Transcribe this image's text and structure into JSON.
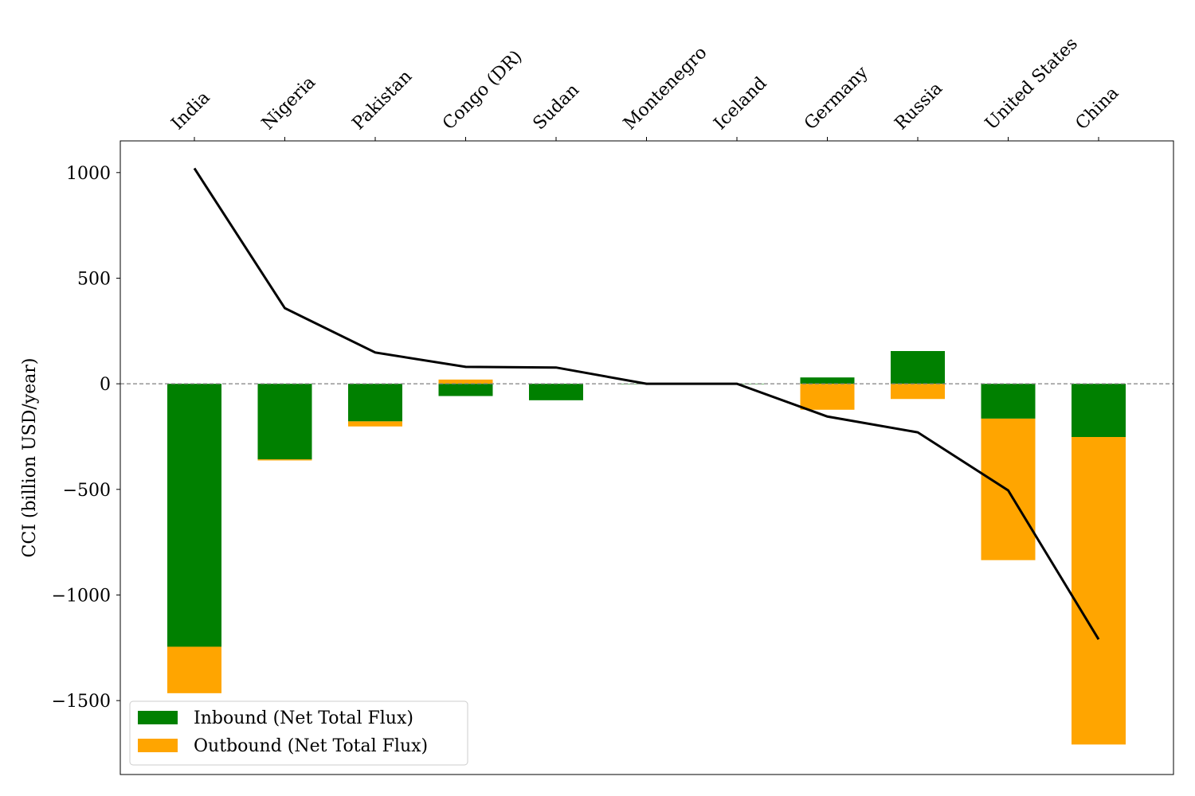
{
  "chart_data": {
    "type": "bar",
    "stacked": true,
    "categories": [
      "India",
      "Nigeria",
      "Pakistan",
      "Congo (DR)",
      "Sudan",
      "Montenegro",
      "Iceland",
      "Germany",
      "Russia",
      "United States",
      "China"
    ],
    "series": [
      {
        "name": "Inbound (Net Total Flux)",
        "color": "#008000",
        "segments": [
          [
            -1245,
            0
          ],
          [
            -358,
            0
          ],
          [
            -178,
            0
          ],
          [
            -58,
            0
          ],
          [
            -78,
            0
          ],
          [
            -2,
            0
          ],
          [
            -2,
            0
          ],
          [
            0,
            30
          ],
          [
            0,
            155
          ],
          [
            -165,
            0
          ],
          [
            -252,
            0
          ]
        ]
      },
      {
        "name": "Outbound (Net Total Flux)",
        "color": "#FFA500",
        "segments": [
          [
            -1465,
            -1245
          ],
          [
            -363,
            -358
          ],
          [
            -202,
            -178
          ],
          [
            0,
            20
          ],
          [
            0,
            0
          ],
          [
            0,
            0
          ],
          [
            0,
            0
          ],
          [
            -123,
            0
          ],
          [
            -72,
            0
          ],
          [
            -835,
            -165
          ],
          [
            -1708,
            -252
          ]
        ]
      }
    ],
    "line": {
      "color": "#000000",
      "values": [
        1020,
        358,
        148,
        80,
        77,
        0,
        0,
        -155,
        -230,
        -505,
        -1210
      ]
    },
    "ylabel": "CCI (billion USD/year)",
    "ylim": [
      -1850,
      1150
    ],
    "yticks": [
      1000,
      500,
      0,
      -500,
      -1000,
      -1500
    ],
    "ytick_labels": [
      "1000",
      "500",
      "0",
      "−500",
      "−1000",
      "−1500"
    ],
    "x_tick_position": "top",
    "x_tick_rotation": 45,
    "zero_line": "dashed gray",
    "grid": false,
    "legend_position": "lower-left"
  }
}
